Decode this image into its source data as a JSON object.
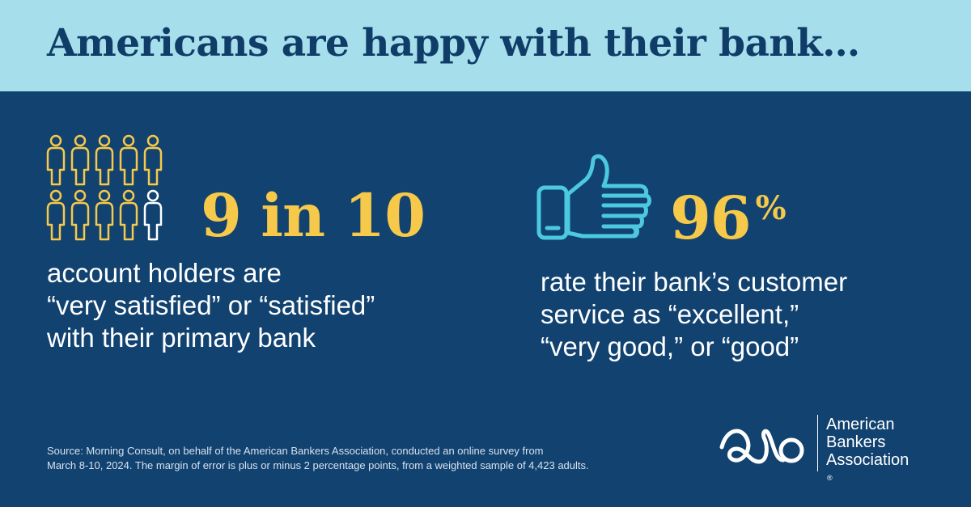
{
  "headline": "Americans are happy with their bank…",
  "left_stat": {
    "value": "9 in 10",
    "satisfied_count": 9,
    "total_count": 10,
    "description_lines": [
      "account holders are",
      "“very satisfied” or “satisfied”",
      "with their primary bank"
    ]
  },
  "right_stat": {
    "value": "96",
    "unit": "%",
    "description_lines": [
      "rate their bank’s customer",
      "service as “excellent,”",
      "“very good,” or “good”"
    ]
  },
  "source_lines": [
    "Source: Morning Consult, on behalf of the American Bankers Association, conducted an online survey from",
    "March 8-10, 2024. The margin of error is plus or minus 2 percentage points, from a weighted sample of 4,423 adults."
  ],
  "logo": {
    "lines": [
      "American",
      "Bankers",
      "Association"
    ],
    "registered_mark": "®"
  },
  "colors": {
    "background": "#114270",
    "header": "#a6dfeb",
    "headline": "#103c68",
    "accent_yellow": "#f7c94a",
    "accent_cyan": "#4cc9df"
  },
  "icons": {
    "people": "person-icon",
    "thumb": "thumbs-up-icon",
    "logo": "aba-logo-icon"
  }
}
